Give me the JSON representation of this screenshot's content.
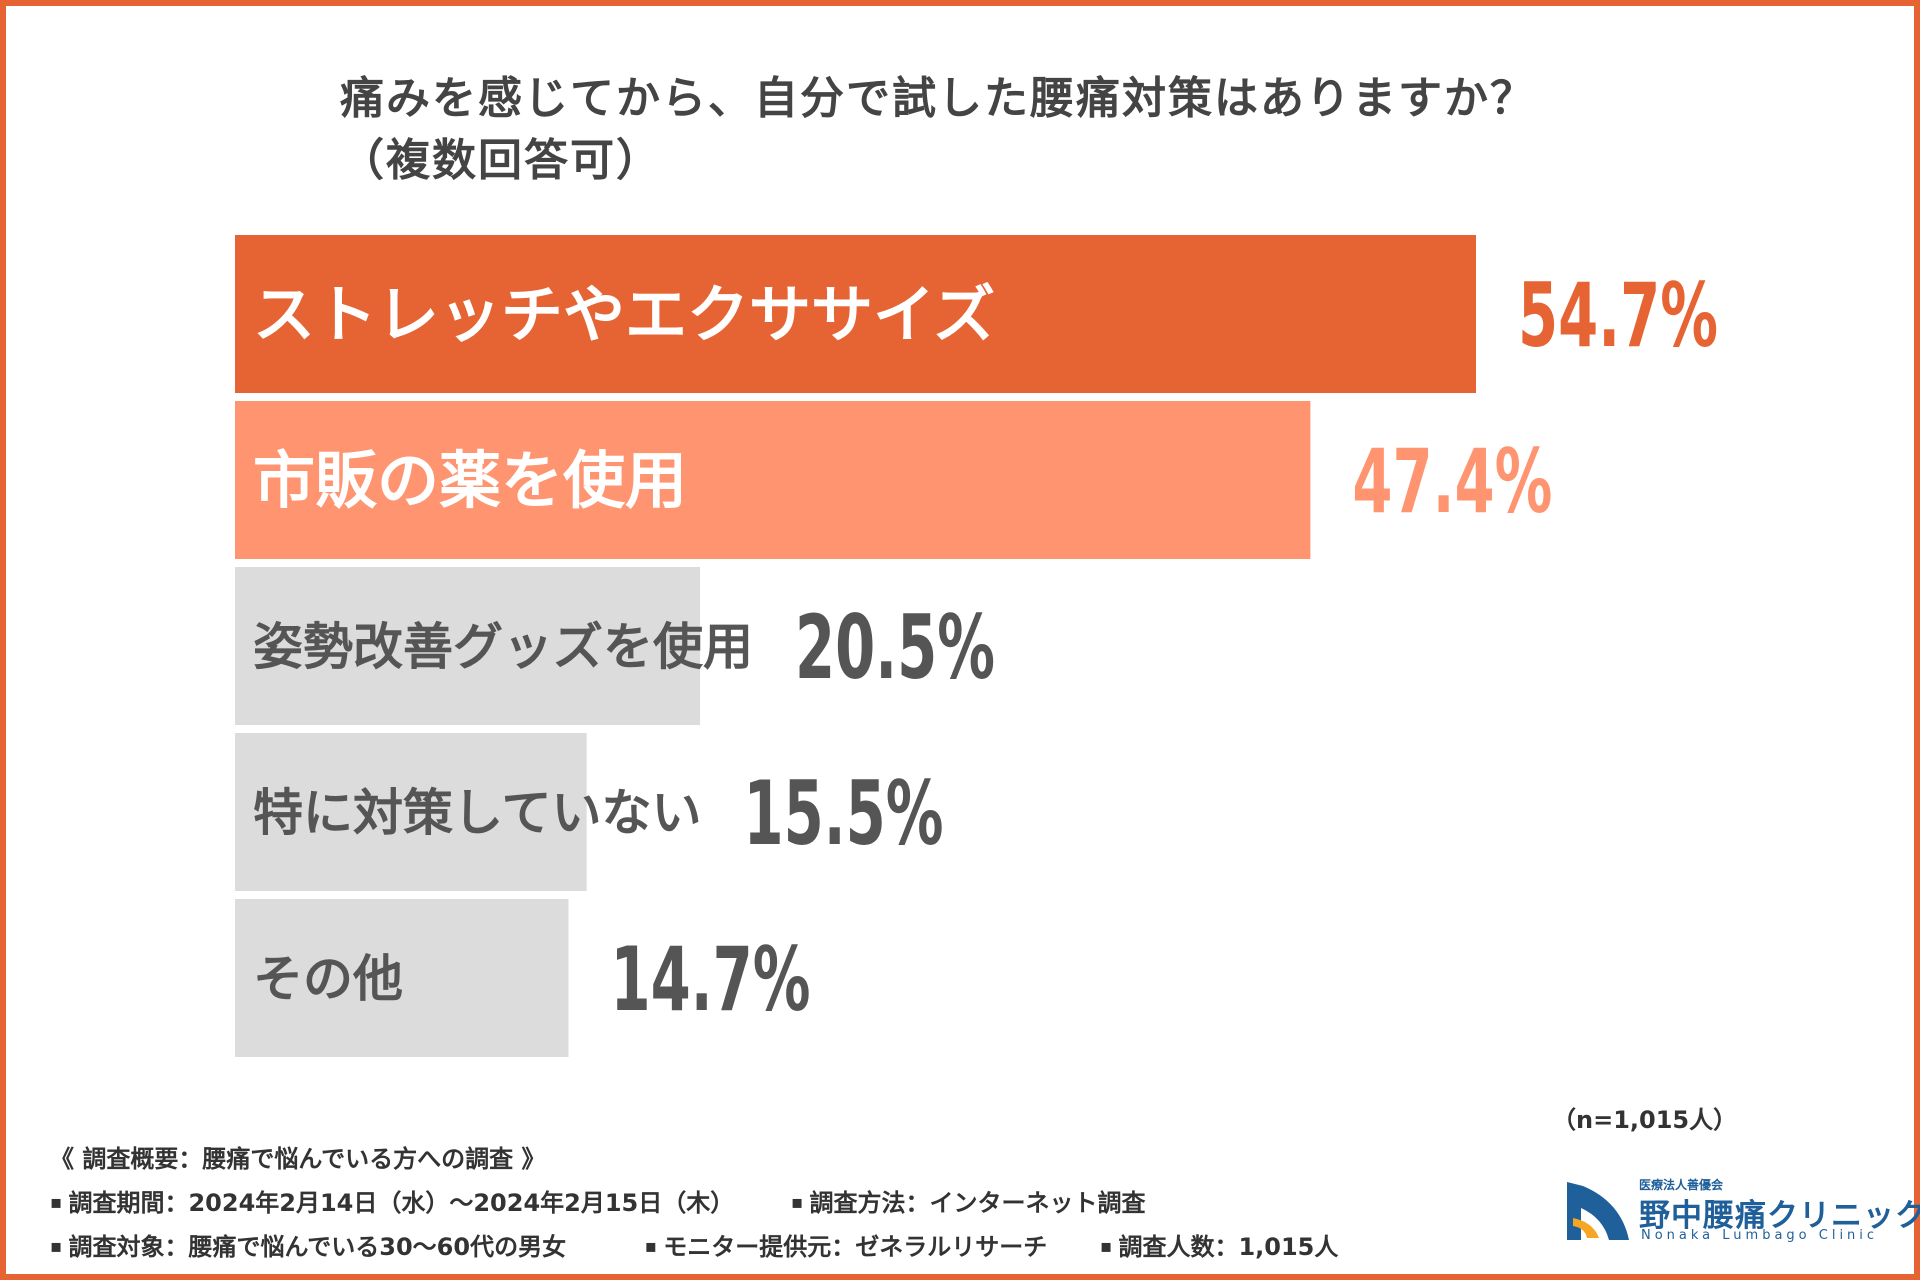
{
  "title": {
    "line1": "痛みを感じてから、自分で試した腰痛対策はありますか？",
    "line2": "（複数回答可）"
  },
  "chart_data": {
    "type": "bar",
    "orientation": "horizontal",
    "categories": [
      "ストレッチやエクササイズ",
      "市販の薬を使用",
      "姿勢改善グッズを使用",
      "特に対策していない",
      "その他"
    ],
    "values": [
      54.7,
      47.4,
      20.5,
      15.5,
      14.7
    ],
    "value_labels": [
      "54.7%",
      "47.4%",
      "20.5%",
      "15.5%",
      "14.7%"
    ],
    "unit": "%",
    "xlim": [
      0,
      100
    ],
    "grid": false,
    "bar_colors": [
      "#e66433",
      "#ff9470",
      "#dcdcdc",
      "#dcdcdc",
      "#dcdcdc"
    ],
    "category_text_colors": [
      "#ffffff",
      "#ffffff",
      "#555555",
      "#555555",
      "#555555"
    ],
    "value_colors": [
      "#e66433",
      "#ff9470",
      "#555555",
      "#555555",
      "#555555"
    ],
    "note": "（n=1,015人）"
  },
  "survey": {
    "heading": "《 調査概要：腰痛で悩んでいる方への調査 》",
    "period": "調査期間：2024年2月14日（水）～2024年2月15日（木）",
    "method": "調査方法：インターネット調査",
    "target": "調査対象：腰痛で悩んでいる30～60代の男女",
    "provider": "モニター提供元：ゼネラルリサーチ",
    "count": "調査人数：1,015人"
  },
  "logo": {
    "sub": "医療法人善優会",
    "name": "野中腰痛クリニック",
    "en": "Nonaka Lumbago Clinic",
    "colors": [
      "#1f5f9a",
      "#f5a623"
    ]
  }
}
